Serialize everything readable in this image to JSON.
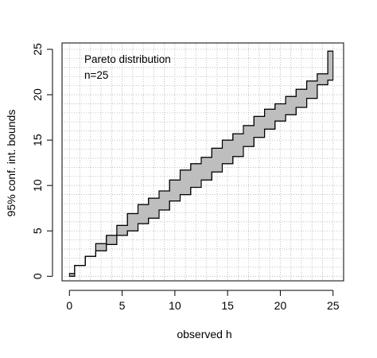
{
  "chart_data": {
    "type": "area",
    "xlabel": "observed h",
    "ylabel": "95% conf. int. bounds",
    "annotations": [
      "Pareto distribution",
      "n=25"
    ],
    "xlim": [
      -0.7,
      26.0
    ],
    "ylim": [
      -0.5,
      25.7
    ],
    "xticks": [
      0,
      5,
      10,
      15,
      20,
      25
    ],
    "yticks": [
      0,
      5,
      10,
      15,
      20,
      25
    ],
    "grid": true,
    "grid_step": 1,
    "band_fill": "#bebebe",
    "series": [
      {
        "name": "upper",
        "x": [
          0,
          1,
          2,
          3,
          4,
          5,
          6,
          7,
          8,
          9,
          10,
          11,
          12,
          13,
          14,
          15,
          16,
          17,
          18,
          19,
          20,
          21,
          22,
          23,
          24,
          25
        ],
        "values": [
          0.3,
          1.2,
          2.2,
          3.6,
          4.5,
          5.6,
          6.9,
          7.9,
          8.6,
          9.4,
          10.6,
          11.7,
          12.4,
          13.1,
          14.1,
          15.0,
          15.7,
          16.6,
          17.6,
          18.4,
          19.0,
          19.8,
          20.6,
          21.5,
          22.3,
          24.8
        ]
      },
      {
        "name": "lower",
        "x": [
          0,
          1,
          2,
          3,
          4,
          5,
          6,
          7,
          8,
          9,
          10,
          11,
          12,
          13,
          14,
          15,
          16,
          17,
          18,
          19,
          20,
          21,
          22,
          23,
          24,
          25
        ],
        "values": [
          0.0,
          1.2,
          2.2,
          2.8,
          3.5,
          4.5,
          5.0,
          5.8,
          6.4,
          7.3,
          8.3,
          9.0,
          9.8,
          10.6,
          11.5,
          12.4,
          13.2,
          14.3,
          15.3,
          16.2,
          17.1,
          17.8,
          18.6,
          19.6,
          21.1,
          21.6
        ]
      }
    ],
    "step_widths": [
      0.5,
      1,
      1,
      1,
      1,
      1,
      1,
      1,
      1,
      1,
      1,
      1,
      1,
      1,
      1,
      1,
      1,
      1,
      1,
      1,
      1,
      1,
      1,
      1,
      1,
      0.5
    ]
  }
}
